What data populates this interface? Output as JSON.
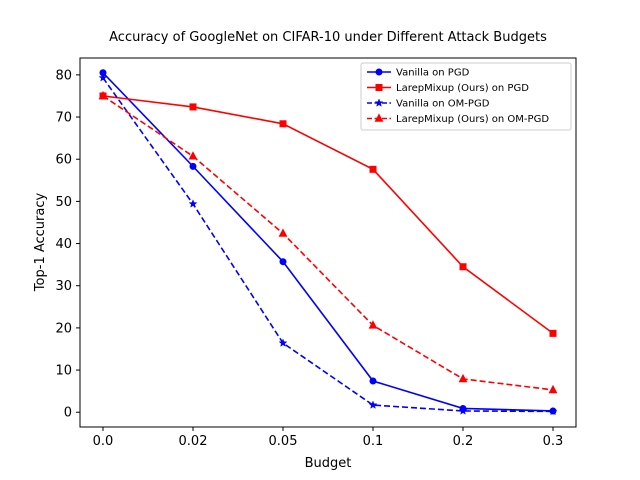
{
  "chart_data": {
    "type": "line",
    "title": "Accuracy of GoogleNet on CIFAR-10 under Different Attack Budgets",
    "xlabel": "Budget",
    "ylabel": "Top-1 Accuracy",
    "categories": [
      "0.0",
      "0.02",
      "0.05",
      "0.1",
      "0.2",
      "0.3"
    ],
    "ylim": [
      -3.5,
      84
    ],
    "yticks": [
      0,
      10,
      20,
      30,
      40,
      50,
      60,
      70,
      80
    ],
    "grid": false,
    "legend_position": "top-right",
    "series": [
      {
        "name": "Vanilla on PGD",
        "color": "#0000ff",
        "dash": "solid",
        "marker": "circle",
        "values": [
          80.5,
          58.3,
          35.7,
          7.4,
          0.9,
          0.3
        ]
      },
      {
        "name": "LarepMixup (Ours) on PGD",
        "color": "#ff0000",
        "dash": "solid",
        "marker": "square",
        "values": [
          75.0,
          72.4,
          68.4,
          57.6,
          34.5,
          18.7
        ]
      },
      {
        "name": "Vanilla on OM-PGD",
        "color": "#0000ff",
        "dash": "dashed",
        "marker": "star",
        "values": [
          79.3,
          49.4,
          16.4,
          1.7,
          0.3,
          0.2
        ]
      },
      {
        "name": "LarepMixup (Ours) on OM-PGD",
        "color": "#ff0000",
        "dash": "dashed",
        "marker": "triangle",
        "values": [
          75.0,
          60.7,
          42.4,
          20.6,
          7.9,
          5.3
        ]
      }
    ]
  }
}
